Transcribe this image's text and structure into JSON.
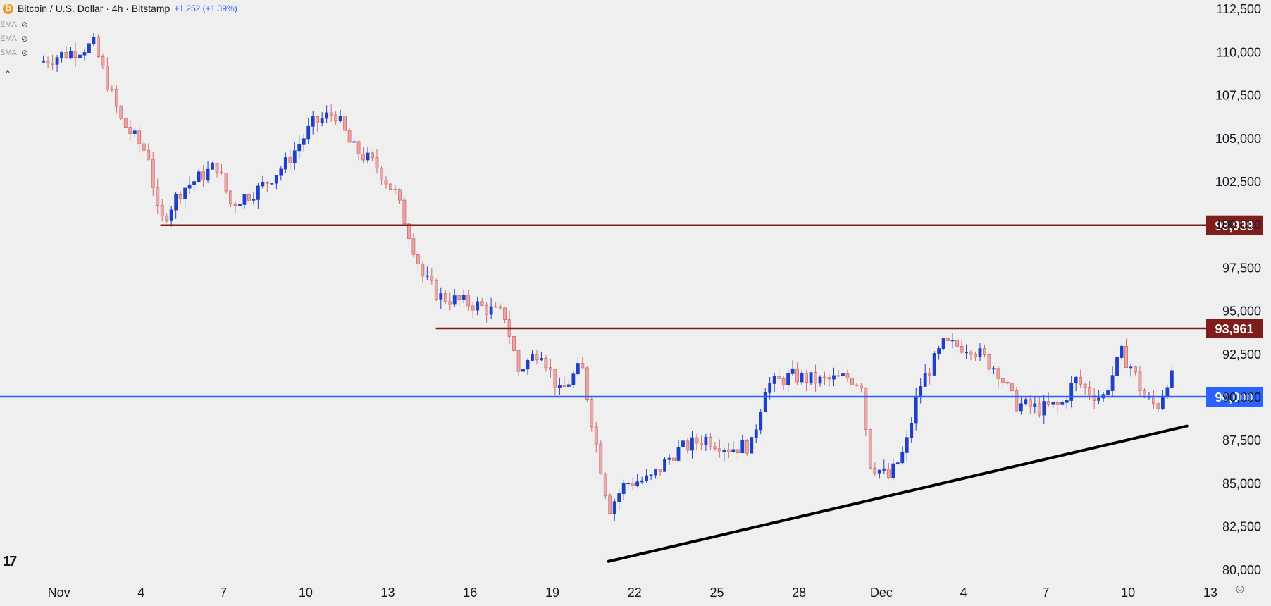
{
  "header": {
    "symbol": "Bitcoin / U.S. Dollar · 4h · Bitstamp",
    "change": "+1,252 (+1.39%)",
    "icon": "bitcoin-icon"
  },
  "indicators": [
    {
      "label": "EMA",
      "icon": "eye-off-icon"
    },
    {
      "label": "EMA",
      "icon": "eye-off-icon"
    },
    {
      "label": "SMA",
      "icon": "eye-off-icon"
    }
  ],
  "colors": {
    "up": "#1e40c8",
    "down": "#d46a6a",
    "resistance": "#7f1d1d",
    "level90k": "#2962ff",
    "trendline": "#000000",
    "background": "#efefef"
  },
  "chart_data": {
    "type": "candlestick",
    "symbol": "Bitcoin / U.S. Dollar",
    "timeframe": "4h",
    "exchange": "Bitstamp",
    "x_tick_labels": [
      "Nov",
      "4",
      "7",
      "10",
      "13",
      "16",
      "19",
      "22",
      "25",
      "28",
      "Dec",
      "4",
      "7",
      "10",
      "13"
    ],
    "y_tick_labels": [
      "112,500",
      "110,000",
      "107,500",
      "105,000",
      "102,500",
      "100,000",
      "97,500",
      "95,000",
      "92,500",
      "90,000",
      "87,500",
      "85,000",
      "82,500",
      "80,000"
    ],
    "y_ticks": [
      112500,
      110000,
      107500,
      105000,
      102500,
      100000,
      97500,
      95000,
      92500,
      90000,
      87500,
      85000,
      82500,
      80000
    ],
    "ylim": [
      79500,
      113000
    ],
    "x_day_range": [
      -1.5,
      42.5
    ],
    "levels": [
      {
        "value": 99939,
        "label": "99,939",
        "color": "#7f1d1d",
        "start_day": 4.35
      },
      {
        "value": 93961,
        "label": "93,961",
        "color": "#7f1d1d",
        "start_day": 14.4
      },
      {
        "value": 90000,
        "label": "90,000",
        "color": "#2962ff",
        "start_day": -1.5
      }
    ],
    "trendline": {
      "from": {
        "day": 20.7,
        "price": 80450
      },
      "to": {
        "day": 41.8,
        "price": 88300
      }
    },
    "series": [
      {
        "day": 1.0,
        "price": 109900
      },
      {
        "day": 2.0,
        "price": 110400
      },
      {
        "day": 3.0,
        "price": 106000
      },
      {
        "day": 4.0,
        "price": 104000
      },
      {
        "day": 4.4,
        "price": 100000
      },
      {
        "day": 5.2,
        "price": 102000
      },
      {
        "day": 6.5,
        "price": 103400
      },
      {
        "day": 7.0,
        "price": 101200
      },
      {
        "day": 8.0,
        "price": 102000
      },
      {
        "day": 9.0,
        "price": 103500
      },
      {
        "day": 10.0,
        "price": 105800
      },
      {
        "day": 10.8,
        "price": 106500
      },
      {
        "day": 11.4,
        "price": 104500
      },
      {
        "day": 12.3,
        "price": 103400
      },
      {
        "day": 13.0,
        "price": 101800
      },
      {
        "day": 13.5,
        "price": 99500
      },
      {
        "day": 14.0,
        "price": 97000
      },
      {
        "day": 14.6,
        "price": 95800
      },
      {
        "day": 16.0,
        "price": 95300
      },
      {
        "day": 17.0,
        "price": 94700
      },
      {
        "day": 17.5,
        "price": 91500
      },
      {
        "day": 18.3,
        "price": 92800
      },
      {
        "day": 19.0,
        "price": 90200
      },
      {
        "day": 19.8,
        "price": 91800
      },
      {
        "day": 20.3,
        "price": 87500
      },
      {
        "day": 20.8,
        "price": 83500
      },
      {
        "day": 21.4,
        "price": 85000
      },
      {
        "day": 22.3,
        "price": 85200
      },
      {
        "day": 23.2,
        "price": 86800
      },
      {
        "day": 24.3,
        "price": 87600
      },
      {
        "day": 25.2,
        "price": 87000
      },
      {
        "day": 26.0,
        "price": 87200
      },
      {
        "day": 26.5,
        "price": 90600
      },
      {
        "day": 27.5,
        "price": 91200
      },
      {
        "day": 28.5,
        "price": 90900
      },
      {
        "day": 29.5,
        "price": 91100
      },
      {
        "day": 30.0,
        "price": 90800
      },
      {
        "day": 30.3,
        "price": 86200
      },
      {
        "day": 31.0,
        "price": 85300
      },
      {
        "day": 31.6,
        "price": 86900
      },
      {
        "day": 32.1,
        "price": 90500
      },
      {
        "day": 33.0,
        "price": 93000
      },
      {
        "day": 34.0,
        "price": 92900
      },
      {
        "day": 35.0,
        "price": 91500
      },
      {
        "day": 35.6,
        "price": 89600
      },
      {
        "day": 36.5,
        "price": 89300
      },
      {
        "day": 37.3,
        "price": 89500
      },
      {
        "day": 37.8,
        "price": 91000
      },
      {
        "day": 38.3,
        "price": 90300
      },
      {
        "day": 38.8,
        "price": 89900
      },
      {
        "day": 39.5,
        "price": 92500
      },
      {
        "day": 39.9,
        "price": 91600
      },
      {
        "day": 40.3,
        "price": 90000
      },
      {
        "day": 40.8,
        "price": 89400
      },
      {
        "day": 41.2,
        "price": 91100
      }
    ]
  }
}
